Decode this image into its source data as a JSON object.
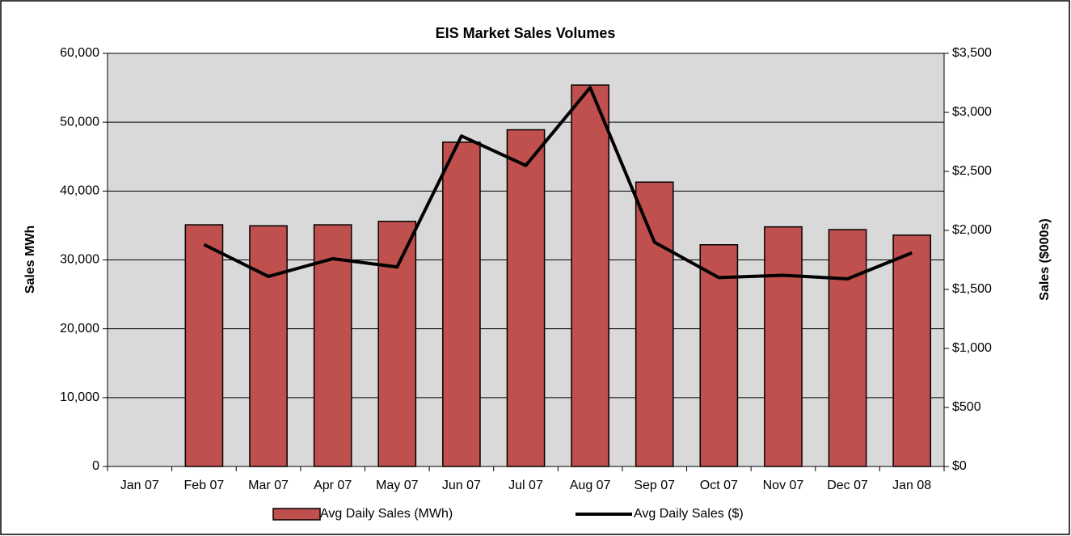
{
  "chart_data": {
    "type": "bar-line",
    "title": "EIS Market Sales Volumes",
    "y_label": "Sales MWh",
    "y2_label": "Sales ($000s)",
    "categories": [
      "Jan 07",
      "Feb 07",
      "Mar 07",
      "Apr 07",
      "May 07",
      "Jun 07",
      "Jul 07",
      "Aug 07",
      "Sep 07",
      "Oct 07",
      "Nov 07",
      "Dec 07",
      "Jan 08"
    ],
    "series": [
      {
        "name": "Avg Daily Sales (MWh)",
        "type": "bar",
        "color": "#c0504d",
        "values": [
          null,
          35100,
          34950,
          35100,
          35600,
          47100,
          48900,
          55400,
          41300,
          32200,
          34800,
          34400,
          33600
        ]
      },
      {
        "name": "Avg Daily Sales ($)",
        "type": "line",
        "axis": "y2",
        "color": "#000000",
        "values": [
          null,
          1880,
          1610,
          1760,
          1690,
          2800,
          2550,
          3210,
          1900,
          1600,
          1620,
          1590,
          1810
        ]
      }
    ],
    "ylim": [
      0,
      60000
    ],
    "yticks": [
      0,
      {
        "value": 10000,
        "label": "10,000"
      },
      {
        "value": 20000,
        "label": "20,000"
      },
      {
        "value": 30000,
        "label": "30,000"
      },
      {
        "value": 40000,
        "label": "40,000"
      },
      {
        "value": 50000,
        "label": "50,000"
      },
      {
        "value": 60000,
        "label": "60,000"
      }
    ],
    "y2lim": [
      0,
      3500
    ],
    "y2ticks": [
      {
        "value": 0,
        "label": "$0"
      },
      {
        "value": 500,
        "label": "$500"
      },
      {
        "value": 1000,
        "label": "$1,000"
      },
      {
        "value": 1500,
        "label": "$1,500"
      },
      {
        "value": 2000,
        "label": "$2,000"
      },
      {
        "value": 2500,
        "label": "$2,500"
      },
      {
        "value": 3000,
        "label": "$3,000"
      },
      {
        "value": 3500,
        "label": "$3,500"
      }
    ],
    "grid": true,
    "legend": "bottom",
    "plot_background": "#d9d9d9"
  }
}
